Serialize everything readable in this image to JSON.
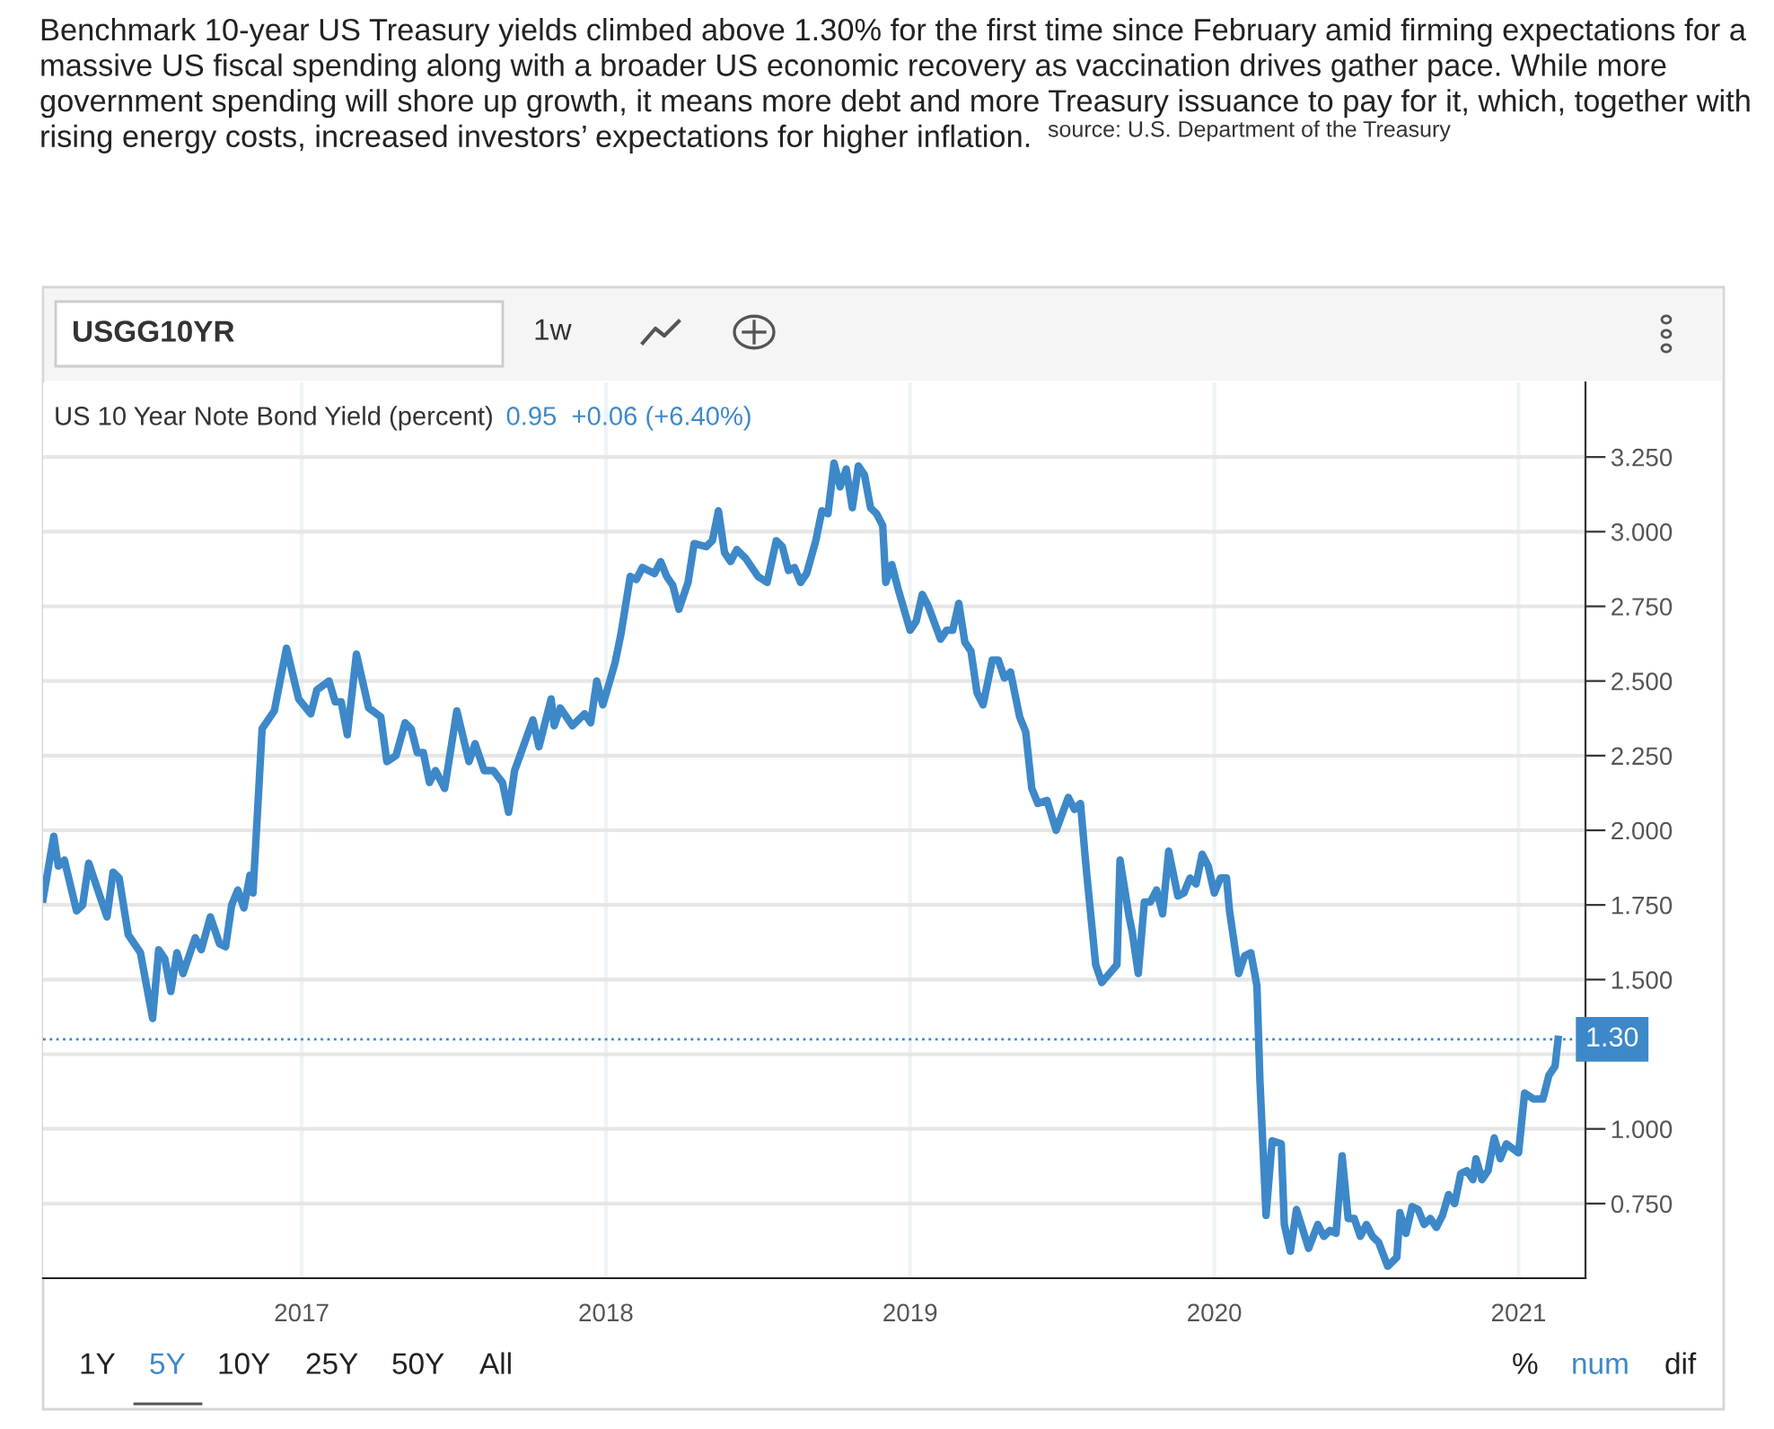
{
  "chart_data": {
    "type": "line",
    "title": "Benchmark 10-year US Treasury yields climbed above 1.30% for the first time since February amid firming expectations for a massive US fiscal spending along with a broader US economic recovery as vaccination drives gather pace. While more government spending will shore up growth, it means more debt and more Treasury issuance to pay for it, which, together with rising energy costs, increased investors’ expectations for higher inflation.",
    "subtitle": "US 10 Year Note Bond Yield (percent)",
    "annotations": [
      "source: U.S. Department of the Treasury",
      "0.95",
      "+0.06 (+6.40%)",
      "USGG10YR",
      "1w",
      "1Y",
      "5Y",
      "10Y",
      "25Y",
      "50Y",
      "All",
      "%",
      "num",
      "dif"
    ],
    "x": [
      2016.15,
      2016.185,
      2016.2,
      2016.22,
      2016.26,
      2016.28,
      2016.3,
      2016.36,
      2016.38,
      2016.4,
      2016.43,
      2016.47,
      2016.51,
      2016.53,
      2016.55,
      2016.57,
      2016.59,
      2016.61,
      2016.65,
      2016.67,
      2016.7,
      2016.73,
      2016.75,
      2016.77,
      2016.79,
      2016.81,
      2016.83,
      2016.84,
      2016.87,
      2016.91,
      2016.95,
      2016.99,
      2017.03,
      2017.05,
      2017.09,
      2017.11,
      2017.13,
      2017.15,
      2017.18,
      2017.22,
      2017.26,
      2017.28,
      2017.31,
      2017.34,
      2017.36,
      2017.38,
      2017.4,
      2017.42,
      2017.44,
      2017.47,
      2017.51,
      2017.55,
      2017.57,
      2017.6,
      2017.63,
      2017.66,
      2017.68,
      2017.7,
      2017.76,
      2017.78,
      2017.82,
      2017.83,
      2017.85,
      2017.89,
      2017.93,
      2017.95,
      2017.97,
      2017.99,
      2018.03,
      2018.05,
      2018.08,
      2018.1,
      2018.12,
      2018.16,
      2018.18,
      2018.2,
      2018.22,
      2018.24,
      2018.27,
      2018.29,
      2018.33,
      2018.35,
      2018.37,
      2018.39,
      2018.41,
      2018.43,
      2018.46,
      2018.5,
      2018.53,
      2018.56,
      2018.58,
      2018.6,
      2018.62,
      2018.64,
      2018.66,
      2018.69,
      2018.71,
      2018.73,
      2018.75,
      2018.77,
      2018.79,
      2018.81,
      2018.83,
      2018.85,
      2018.87,
      2018.89,
      2018.91,
      2018.92,
      2018.94,
      2018.96,
      2019.0,
      2019.02,
      2019.04,
      2019.06,
      2019.1,
      2019.12,
      2019.14,
      2019.16,
      2019.18,
      2019.2,
      2019.22,
      2019.24,
      2019.27,
      2019.29,
      2019.31,
      2019.33,
      2019.36,
      2019.38,
      2019.4,
      2019.42,
      2019.45,
      2019.48,
      2019.52,
      2019.54,
      2019.56,
      2019.58,
      2019.61,
      2019.63,
      2019.68,
      2019.69,
      2019.72,
      2019.73,
      2019.75,
      2019.77,
      2019.79,
      2019.81,
      2019.83,
      2019.85,
      2019.88,
      2019.9,
      2019.92,
      2019.94,
      2019.96,
      2019.98,
      2020.0,
      2020.02,
      2020.04,
      2020.05,
      2020.08,
      2020.1,
      2020.12,
      2020.14,
      2020.15,
      2020.17,
      2020.19,
      2020.22,
      2020.23,
      2020.25,
      2020.27,
      2020.31,
      2020.34,
      2020.36,
      2020.38,
      2020.4,
      2020.42,
      2020.44,
      2020.46,
      2020.48,
      2020.5,
      2020.52,
      2020.54,
      2020.57,
      2020.6,
      2020.61,
      2020.63,
      2020.65,
      2020.67,
      2020.69,
      2020.71,
      2020.73,
      2020.75,
      2020.77,
      2020.79,
      2020.81,
      2020.83,
      2020.85,
      2020.86,
      2020.88,
      2020.9,
      2020.92,
      2020.94,
      2020.96,
      2021.0,
      2021.02,
      2021.05,
      2021.08,
      2021.1,
      2021.12,
      2021.13
    ],
    "series": [
      {
        "color": "#3d88c9",
        "values": [
          1.77,
          1.98,
          1.88,
          1.9,
          1.73,
          1.75,
          1.89,
          1.71,
          1.86,
          1.84,
          1.65,
          1.59,
          1.37,
          1.6,
          1.57,
          1.46,
          1.59,
          1.52,
          1.64,
          1.6,
          1.71,
          1.62,
          1.61,
          1.75,
          1.8,
          1.74,
          1.85,
          1.79,
          2.34,
          2.4,
          2.61,
          2.44,
          2.39,
          2.47,
          2.5,
          2.43,
          2.43,
          2.32,
          2.59,
          2.41,
          2.38,
          2.23,
          2.25,
          2.36,
          2.34,
          2.26,
          2.26,
          2.16,
          2.2,
          2.14,
          2.4,
          2.23,
          2.29,
          2.2,
          2.2,
          2.16,
          2.06,
          2.2,
          2.37,
          2.28,
          2.44,
          2.35,
          2.41,
          2.35,
          2.39,
          2.36,
          2.5,
          2.42,
          2.56,
          2.66,
          2.85,
          2.84,
          2.88,
          2.86,
          2.9,
          2.85,
          2.82,
          2.74,
          2.83,
          2.96,
          2.95,
          2.97,
          3.07,
          2.93,
          2.9,
          2.94,
          2.91,
          2.85,
          2.83,
          2.97,
          2.95,
          2.87,
          2.88,
          2.83,
          2.86,
          2.97,
          3.07,
          3.06,
          3.23,
          3.15,
          3.21,
          3.08,
          3.22,
          3.19,
          3.08,
          3.06,
          3.02,
          2.83,
          2.89,
          2.81,
          2.67,
          2.7,
          2.79,
          2.75,
          2.64,
          2.67,
          2.67,
          2.76,
          2.63,
          2.6,
          2.46,
          2.42,
          2.57,
          2.57,
          2.51,
          2.53,
          2.38,
          2.33,
          2.14,
          2.09,
          2.1,
          2.0,
          2.11,
          2.07,
          2.09,
          1.86,
          1.55,
          1.49,
          1.55,
          1.9,
          1.71,
          1.66,
          1.52,
          1.76,
          1.76,
          1.8,
          1.72,
          1.93,
          1.78,
          1.79,
          1.84,
          1.82,
          1.92,
          1.88,
          1.79,
          1.84,
          1.84,
          1.73,
          1.52,
          1.58,
          1.59,
          1.48,
          1.16,
          0.71,
          0.96,
          0.95,
          0.68,
          0.59,
          0.73,
          0.6,
          0.68,
          0.64,
          0.66,
          0.65,
          0.91,
          0.7,
          0.7,
          0.64,
          0.68,
          0.64,
          0.62,
          0.54,
          0.57,
          0.72,
          0.65,
          0.74,
          0.73,
          0.68,
          0.7,
          0.67,
          0.71,
          0.78,
          0.75,
          0.85,
          0.86,
          0.83,
          0.9,
          0.83,
          0.86,
          0.97,
          0.9,
          0.95,
          0.92,
          1.12,
          1.1,
          1.1,
          1.18,
          1.21,
          1.3
        ]
      }
    ],
    "xlim": [
      2016.15,
      2021.22
    ],
    "ylim": [
      0.5,
      3.5
    ],
    "xticks": [
      2017,
      2018,
      2019,
      2020,
      2021
    ],
    "yticks": [
      {
        "value": 0.75,
        "label": "0.750"
      },
      {
        "value": 1.0,
        "label": "1.000"
      },
      {
        "value": 1.25,
        "label": null
      },
      {
        "value": 1.5,
        "label": "1.500"
      },
      {
        "value": 1.75,
        "label": "1.750"
      },
      {
        "value": 2.0,
        "label": "2.000"
      },
      {
        "value": 2.25,
        "label": "2.250"
      },
      {
        "value": 2.5,
        "label": "2.500"
      },
      {
        "value": 2.75,
        "label": "2.750"
      },
      {
        "value": 3.0,
        "label": "3.000"
      },
      {
        "value": 3.25,
        "label": "3.250"
      }
    ],
    "ref_lines": [
      {
        "axis": "y",
        "value": 1.3,
        "label": "1.30",
        "color": "#3d88c9",
        "line_style": "dotted"
      }
    ],
    "grid": true,
    "marker": "none",
    "line_style": "solid"
  }
}
